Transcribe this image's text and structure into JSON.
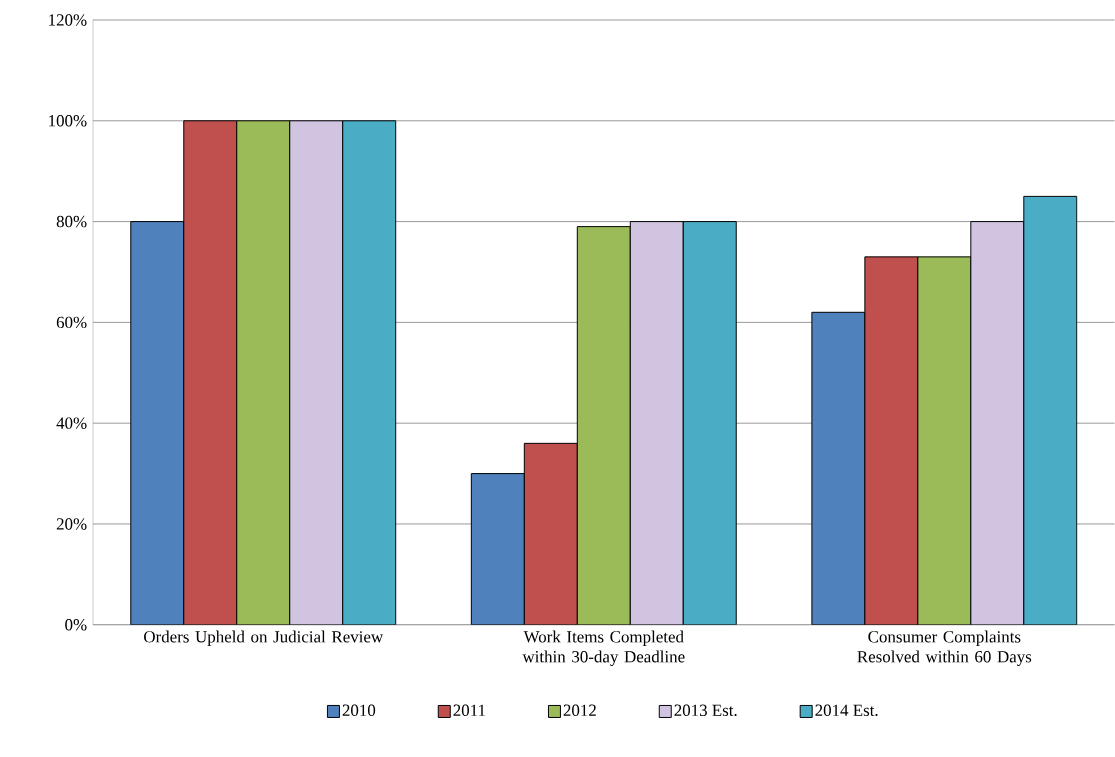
{
  "chart_data": {
    "type": "bar",
    "categories": [
      "Orders Upheld on Judicial Review",
      "Work Items Completed within 30-day Deadline",
      "Consumer Complaints Resolved within 60 Days"
    ],
    "series": [
      {
        "name": "2010",
        "color": "#4f81bd",
        "values": [
          80,
          30,
          62
        ]
      },
      {
        "name": "2011",
        "color": "#c0504d",
        "values": [
          100,
          36,
          73
        ]
      },
      {
        "name": "2012",
        "color": "#9bbb59",
        "values": [
          100,
          79,
          73
        ]
      },
      {
        "name": "2013 Est.",
        "color": "#d0c4e0",
        "values": [
          100,
          80,
          80
        ]
      },
      {
        "name": "2014 Est.",
        "color": "#4bacc6",
        "values": [
          100,
          80,
          85
        ]
      }
    ],
    "ylim": [
      0,
      120
    ],
    "yticks": [
      {
        "value": 0,
        "label": "0%"
      },
      {
        "value": 20,
        "label": "20%"
      },
      {
        "value": 40,
        "label": "40%"
      },
      {
        "value": 60,
        "label": "60%"
      },
      {
        "value": 80,
        "label": "80%"
      },
      {
        "value": 100,
        "label": "100%"
      },
      {
        "value": 120,
        "label": "120%"
      }
    ],
    "grid": "y",
    "legend": "bottom"
  }
}
